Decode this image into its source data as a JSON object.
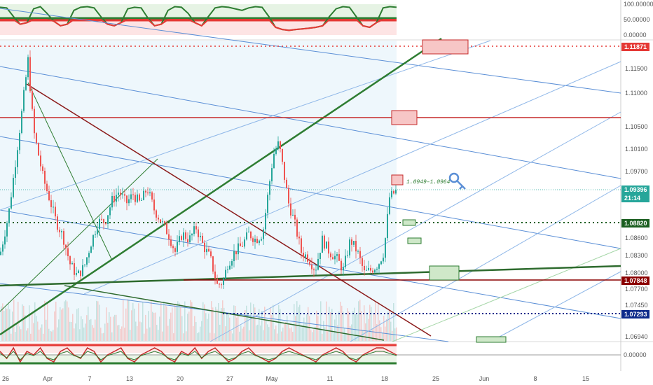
{
  "chart_data": {
    "type": "line",
    "symbol_pair": "EUR/USD",
    "price_axis": {
      "ticks": [
        "1.11871",
        "1.11500",
        "1.11000",
        "1.10500",
        "1.10100",
        "1.09700",
        "1.09396",
        "1.08820",
        "1.08600",
        "1.08300",
        "1.08000",
        "1.07848",
        "1.07700",
        "1.07450",
        "1.07293",
        "1.06940"
      ],
      "ylim": [
        1.068,
        1.12
      ]
    },
    "time_axis": {
      "labels": [
        "26",
        "Apr",
        "7",
        "13",
        "20",
        "27",
        "May",
        "11",
        "18",
        "25",
        "Jun",
        "8",
        "15"
      ]
    },
    "badges": [
      {
        "label": "1.11871",
        "value": 1.11871,
        "color": "#e53935"
      },
      {
        "label": "1.09396",
        "value": 1.09396,
        "color": "#26a69a"
      },
      {
        "label": "21:14",
        "value": 1.0925,
        "color": "#26a69a"
      },
      {
        "label": "1.08820",
        "value": 1.0882,
        "color": "#1b5e20"
      },
      {
        "label": "1.07848",
        "value": 1.07848,
        "color": "#8b0000"
      },
      {
        "label": "1.07293",
        "value": 1.07293,
        "color": "#0d2a8a"
      }
    ],
    "annotation": "1.0949–1.0964",
    "top_oscillator": {
      "ticks": [
        "100.00000",
        "50.00000",
        "0.00000"
      ],
      "upper_level": 75,
      "lower_level": 25,
      "values": [
        90,
        88,
        60,
        35,
        40,
        85,
        92,
        70,
        45,
        30,
        35,
        80,
        90,
        92,
        88,
        60,
        35,
        30,
        40,
        85,
        90,
        88,
        55,
        30,
        35,
        80,
        92,
        90,
        70,
        40,
        30,
        60,
        88,
        92,
        90,
        85,
        80,
        88,
        92,
        90,
        60,
        25,
        18,
        15,
        18,
        20,
        22,
        25,
        30,
        60,
        85,
        92,
        90,
        60,
        30,
        25,
        40,
        88,
        92,
        90
      ]
    },
    "bottom_oscillator": {
      "ticks": [
        "0.00000"
      ],
      "values": [
        1,
        -1,
        2,
        -2,
        1,
        0,
        2,
        -1,
        -2,
        1,
        2,
        0,
        -1,
        2,
        1,
        -2,
        0,
        1,
        2,
        -1,
        -2,
        0,
        1,
        2,
        1,
        -1,
        -2,
        1,
        0,
        2,
        -1,
        1,
        2,
        0,
        -2,
        -1,
        1,
        2,
        0,
        -1,
        -2,
        -1,
        1,
        2,
        1,
        0,
        -1,
        -2,
        0,
        1,
        2,
        1,
        -1,
        -2,
        0,
        1,
        2,
        2,
        1,
        0
      ]
    },
    "price_series": [
      [
        0,
        1.0825
      ],
      [
        12,
        1.089
      ],
      [
        20,
        1.096
      ],
      [
        30,
        1.105
      ],
      [
        40,
        1.1147
      ],
      [
        48,
        1.103
      ],
      [
        55,
        1.099
      ],
      [
        62,
        1.095
      ],
      [
        70,
        1.092
      ],
      [
        80,
        1.088
      ],
      [
        90,
        1.0855
      ],
      [
        100,
        1.081
      ],
      [
        110,
        1.079
      ],
      [
        120,
        1.0805
      ],
      [
        130,
        1.0845
      ],
      [
        140,
        1.088
      ],
      [
        150,
        1.088
      ],
      [
        160,
        1.0915
      ],
      [
        170,
        1.093
      ],
      [
        180,
        1.091
      ],
      [
        190,
        1.0925
      ],
      [
        200,
        1.091
      ],
      [
        210,
        1.0935
      ],
      [
        220,
        1.09
      ],
      [
        230,
        1.088
      ],
      [
        240,
        1.086
      ],
      [
        250,
        1.083
      ],
      [
        260,
        1.086
      ],
      [
        270,
        1.085
      ],
      [
        280,
        1.087
      ],
      [
        290,
        1.084
      ],
      [
        300,
        1.082
      ],
      [
        310,
        1.0775
      ],
      [
        318,
        1.078
      ],
      [
        325,
        1.081
      ],
      [
        335,
        1.083
      ],
      [
        345,
        1.084
      ],
      [
        355,
        1.086
      ],
      [
        365,
        1.085
      ],
      [
        375,
        1.086
      ],
      [
        383,
        1.093
      ],
      [
        390,
        1.099
      ],
      [
        398,
        1.101
      ],
      [
        405,
        1.096
      ],
      [
        412,
        1.091
      ],
      [
        420,
        1.088
      ],
      [
        430,
        1.083
      ],
      [
        440,
        1.082
      ],
      [
        450,
        1.08
      ],
      [
        460,
        1.085
      ],
      [
        470,
        1.083
      ],
      [
        480,
        1.082
      ],
      [
        490,
        1.08
      ],
      [
        500,
        1.085
      ],
      [
        510,
        1.083
      ],
      [
        520,
        1.0795
      ],
      [
        530,
        1.08
      ],
      [
        540,
        1.081
      ],
      [
        548,
        1.083
      ],
      [
        556,
        1.092
      ],
      [
        565,
        1.093
      ]
    ]
  }
}
